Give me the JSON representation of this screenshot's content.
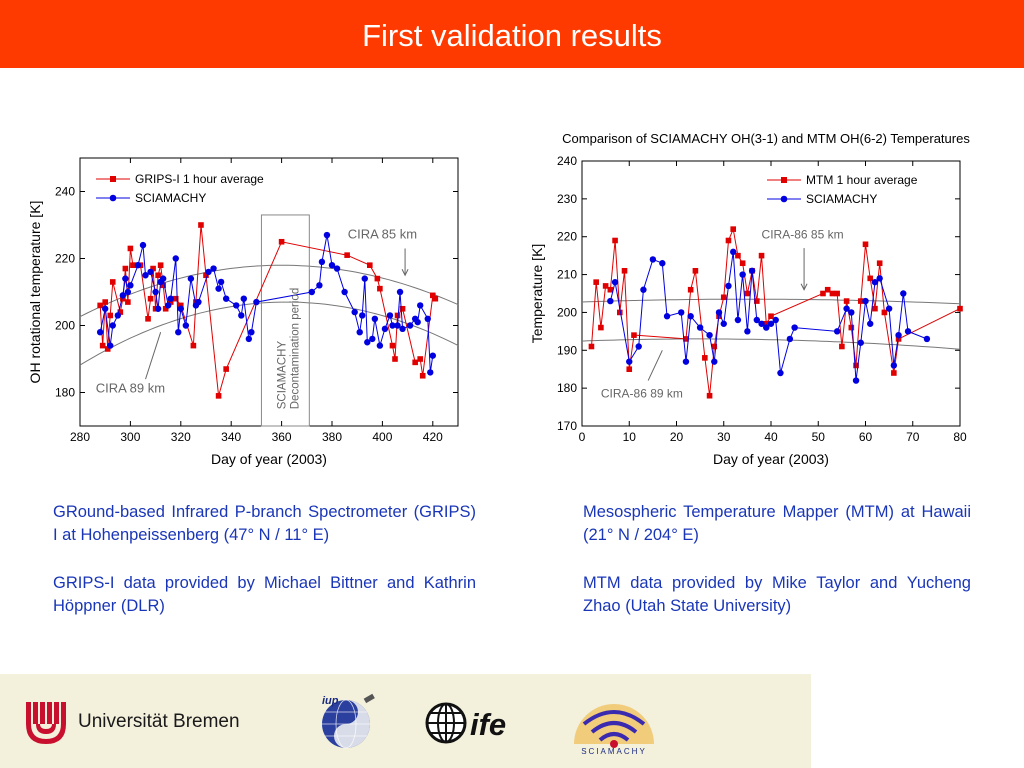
{
  "header": {
    "title": "First validation results"
  },
  "chart_data": [
    {
      "type": "scatter",
      "xlabel": "Day of year (2003)",
      "ylabel": "OH rotational temperature [K]",
      "xlim": [
        280,
        430
      ],
      "ylim": [
        170,
        250
      ],
      "xticks": [
        280,
        300,
        320,
        340,
        360,
        380,
        400,
        420
      ],
      "yticks": [
        180,
        200,
        220,
        240
      ],
      "legend_position": "top-left",
      "series": [
        {
          "name": "GRIPS-I 1 hour average",
          "color": "#e00000",
          "marker": "square",
          "points": [
            [
              288,
              206
            ],
            [
              289,
              194
            ],
            [
              290,
              207
            ],
            [
              291,
              193
            ],
            [
              292,
              203
            ],
            [
              293,
              213
            ],
            [
              296,
              204
            ],
            [
              297,
              208
            ],
            [
              298,
              217
            ],
            [
              299,
              207
            ],
            [
              300,
              223
            ],
            [
              301,
              218
            ],
            [
              302,
              218
            ],
            [
              304,
              218
            ],
            [
              307,
              202
            ],
            [
              308,
              208
            ],
            [
              309,
              217
            ],
            [
              310,
              205
            ],
            [
              311,
              215
            ],
            [
              312,
              218
            ],
            [
              313,
              212
            ],
            [
              314,
              205
            ],
            [
              316,
              207
            ],
            [
              318,
              208
            ],
            [
              320,
              206
            ],
            [
              325,
              194
            ],
            [
              326,
              207
            ],
            [
              328,
              230
            ],
            [
              330,
              215
            ],
            [
              335,
              179
            ],
            [
              338,
              187
            ],
            [
              360,
              225
            ],
            [
              386,
              221
            ],
            [
              395,
              218
            ],
            [
              398,
              214
            ],
            [
              399,
              211
            ],
            [
              404,
              194
            ],
            [
              405,
              190
            ],
            [
              406,
              203
            ],
            [
              408,
              205
            ],
            [
              413,
              189
            ],
            [
              415,
              190
            ],
            [
              416,
              185
            ],
            [
              420,
              209
            ],
            [
              421,
              208
            ]
          ]
        },
        {
          "name": "SCIAMACHY",
          "color": "#0000e0",
          "marker": "circle",
          "points": [
            [
              288,
              198
            ],
            [
              290,
              205
            ],
            [
              292,
              194
            ],
            [
              293,
              200
            ],
            [
              295,
              203
            ],
            [
              297,
              209
            ],
            [
              298,
              214
            ],
            [
              299,
              210
            ],
            [
              300,
              212
            ],
            [
              303,
              218
            ],
            [
              305,
              224
            ],
            [
              306,
              215
            ],
            [
              308,
              216
            ],
            [
              310,
              210
            ],
            [
              311,
              205
            ],
            [
              312,
              213
            ],
            [
              313,
              214
            ],
            [
              315,
              206
            ],
            [
              316,
              208
            ],
            [
              318,
              220
            ],
            [
              319,
              198
            ],
            [
              320,
              205
            ],
            [
              322,
              200
            ],
            [
              324,
              214
            ],
            [
              326,
              206
            ],
            [
              327,
              207
            ],
            [
              331,
              216
            ],
            [
              333,
              217
            ],
            [
              335,
              211
            ],
            [
              336,
              213
            ],
            [
              338,
              208
            ],
            [
              342,
              206
            ],
            [
              344,
              203
            ],
            [
              345,
              208
            ],
            [
              347,
              196
            ],
            [
              348,
              198
            ],
            [
              350,
              207
            ],
            [
              372,
              210
            ],
            [
              375,
              212
            ],
            [
              376,
              219
            ],
            [
              378,
              227
            ],
            [
              380,
              218
            ],
            [
              382,
              217
            ],
            [
              385,
              210
            ],
            [
              389,
              204
            ],
            [
              391,
              198
            ],
            [
              392,
              203
            ],
            [
              393,
              214
            ],
            [
              394,
              195
            ],
            [
              396,
              196
            ],
            [
              397,
              202
            ],
            [
              399,
              194
            ],
            [
              401,
              199
            ],
            [
              403,
              203
            ],
            [
              404,
              200
            ],
            [
              406,
              200
            ],
            [
              407,
              210
            ],
            [
              408,
              199
            ],
            [
              411,
              200
            ],
            [
              413,
              202
            ],
            [
              414,
              201
            ],
            [
              415,
              206
            ],
            [
              418,
              202
            ],
            [
              419,
              186
            ],
            [
              420,
              191
            ]
          ]
        }
      ],
      "annotations": [
        {
          "text": "CIRA 85 km"
        },
        {
          "text": "CIRA 89 km"
        },
        {
          "text": "SCIAMACHY"
        },
        {
          "text": "Decontamination period"
        }
      ]
    },
    {
      "type": "scatter",
      "title": "Comparison of SCIAMACHY OH(3-1) and MTM OH(6-2) Temperatures",
      "xlabel": "Day of year (2003)",
      "ylabel": "Temperature [K]",
      "xlim": [
        0,
        80
      ],
      "ylim": [
        170,
        240
      ],
      "xticks": [
        0,
        10,
        20,
        30,
        40,
        50,
        60,
        70,
        80
      ],
      "yticks": [
        170,
        180,
        190,
        200,
        210,
        220,
        230,
        240
      ],
      "legend_position": "top-right",
      "series": [
        {
          "name": "MTM 1 hour average",
          "color": "#e00000",
          "marker": "square",
          "points": [
            [
              2,
              191
            ],
            [
              3,
              208
            ],
            [
              4,
              196
            ],
            [
              5,
              207
            ],
            [
              6,
              206
            ],
            [
              7,
              219
            ],
            [
              8,
              200
            ],
            [
              9,
              211
            ],
            [
              10,
              185
            ],
            [
              11,
              194
            ],
            [
              22,
              193
            ],
            [
              23,
              206
            ],
            [
              24,
              211
            ],
            [
              26,
              188
            ],
            [
              27,
              178
            ],
            [
              28,
              191
            ],
            [
              29,
              199
            ],
            [
              30,
              204
            ],
            [
              31,
              219
            ],
            [
              32,
              222
            ],
            [
              33,
              215
            ],
            [
              34,
              213
            ],
            [
              35,
              205
            ],
            [
              36,
              211
            ],
            [
              37,
              203
            ],
            [
              38,
              215
            ],
            [
              39,
              197
            ],
            [
              40,
              199
            ],
            [
              51,
              205
            ],
            [
              52,
              206
            ],
            [
              53,
              205
            ],
            [
              54,
              205
            ],
            [
              55,
              191
            ],
            [
              56,
              203
            ],
            [
              57,
              196
            ],
            [
              58,
              186
            ],
            [
              59,
              203
            ],
            [
              60,
              218
            ],
            [
              61,
              209
            ],
            [
              62,
              201
            ],
            [
              63,
              213
            ],
            [
              64,
              200
            ],
            [
              66,
              184
            ],
            [
              67,
              193
            ],
            [
              80,
              201
            ]
          ]
        },
        {
          "name": "SCIAMACHY",
          "color": "#0000e0",
          "marker": "circle",
          "points": [
            [
              6,
              203
            ],
            [
              7,
              208
            ],
            [
              10,
              187
            ],
            [
              12,
              191
            ],
            [
              13,
              206
            ],
            [
              15,
              214
            ],
            [
              17,
              213
            ],
            [
              18,
              199
            ],
            [
              21,
              200
            ],
            [
              22,
              187
            ],
            [
              23,
              199
            ],
            [
              25,
              196
            ],
            [
              27,
              194
            ],
            [
              28,
              187
            ],
            [
              29,
              200
            ],
            [
              30,
              197
            ],
            [
              31,
              207
            ],
            [
              32,
              216
            ],
            [
              33,
              198
            ],
            [
              34,
              210
            ],
            [
              35,
              195
            ],
            [
              36,
              211
            ],
            [
              37,
              198
            ],
            [
              38,
              197
            ],
            [
              39,
              196
            ],
            [
              40,
              197
            ],
            [
              41,
              198
            ],
            [
              42,
              184
            ],
            [
              44,
              193
            ],
            [
              45,
              196
            ],
            [
              54,
              195
            ],
            [
              56,
              201
            ],
            [
              57,
              200
            ],
            [
              58,
              182
            ],
            [
              59,
              192
            ],
            [
              60,
              203
            ],
            [
              61,
              197
            ],
            [
              62,
              208
            ],
            [
              63,
              209
            ],
            [
              65,
              201
            ],
            [
              66,
              186
            ],
            [
              67,
              194
            ],
            [
              68,
              205
            ],
            [
              69,
              195
            ],
            [
              73,
              193
            ]
          ]
        }
      ],
      "annotations": [
        {
          "text": "CIRA-86 85 km"
        },
        {
          "text": "CIRA-86 89 km"
        }
      ]
    }
  ],
  "descriptions": {
    "left_p1": "GRound-based Infrared P-branch Spectrometer (GRIPS) I at Hohenpeissenberg (47° N / 11° E)",
    "left_p2": "GRIPS-I data provided by Michael Bittner and Kathrin Höppner (DLR)",
    "right_p1": "Mesospheric Temperature Mapper (MTM) at Hawaii (21° N / 204° E)",
    "right_p2": "MTM data provided by Mike Taylor and Yucheng Zhao (Utah State University)"
  },
  "footer": {
    "university": "Universität Bremen",
    "iup_label": "iup",
    "ife_label": "ife",
    "sciamachy_label": "SCIAMACHY"
  }
}
